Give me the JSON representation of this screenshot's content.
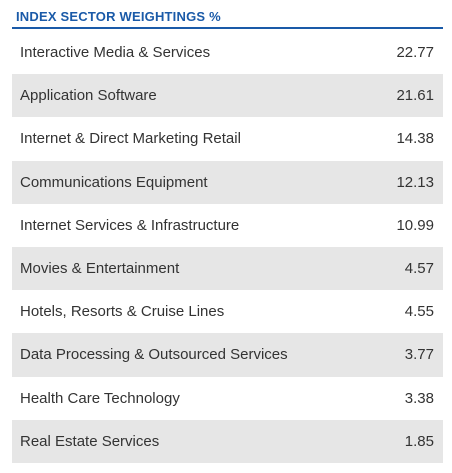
{
  "header": {
    "title": "INDEX SECTOR WEIGHTINGS %",
    "accent_color": "#1a5aa8"
  },
  "table": {
    "shade_color": "#e6e6e6",
    "rows": [
      {
        "label": "Interactive Media & Services",
        "value": "22.77"
      },
      {
        "label": "Application Software",
        "value": "21.61"
      },
      {
        "label": "Internet & Direct Marketing Retail",
        "value": "14.38"
      },
      {
        "label": "Communications Equipment",
        "value": "12.13"
      },
      {
        "label": "Internet Services & Infrastructure",
        "value": "10.99"
      },
      {
        "label": "Movies & Entertainment",
        "value": "4.57"
      },
      {
        "label": "Hotels, Resorts & Cruise Lines",
        "value": "4.55"
      },
      {
        "label": "Data Processing & Outsourced Services",
        "value": "3.77"
      },
      {
        "label": "Health Care Technology",
        "value": "3.38"
      },
      {
        "label": "Real Estate Services",
        "value": "1.85"
      }
    ]
  }
}
